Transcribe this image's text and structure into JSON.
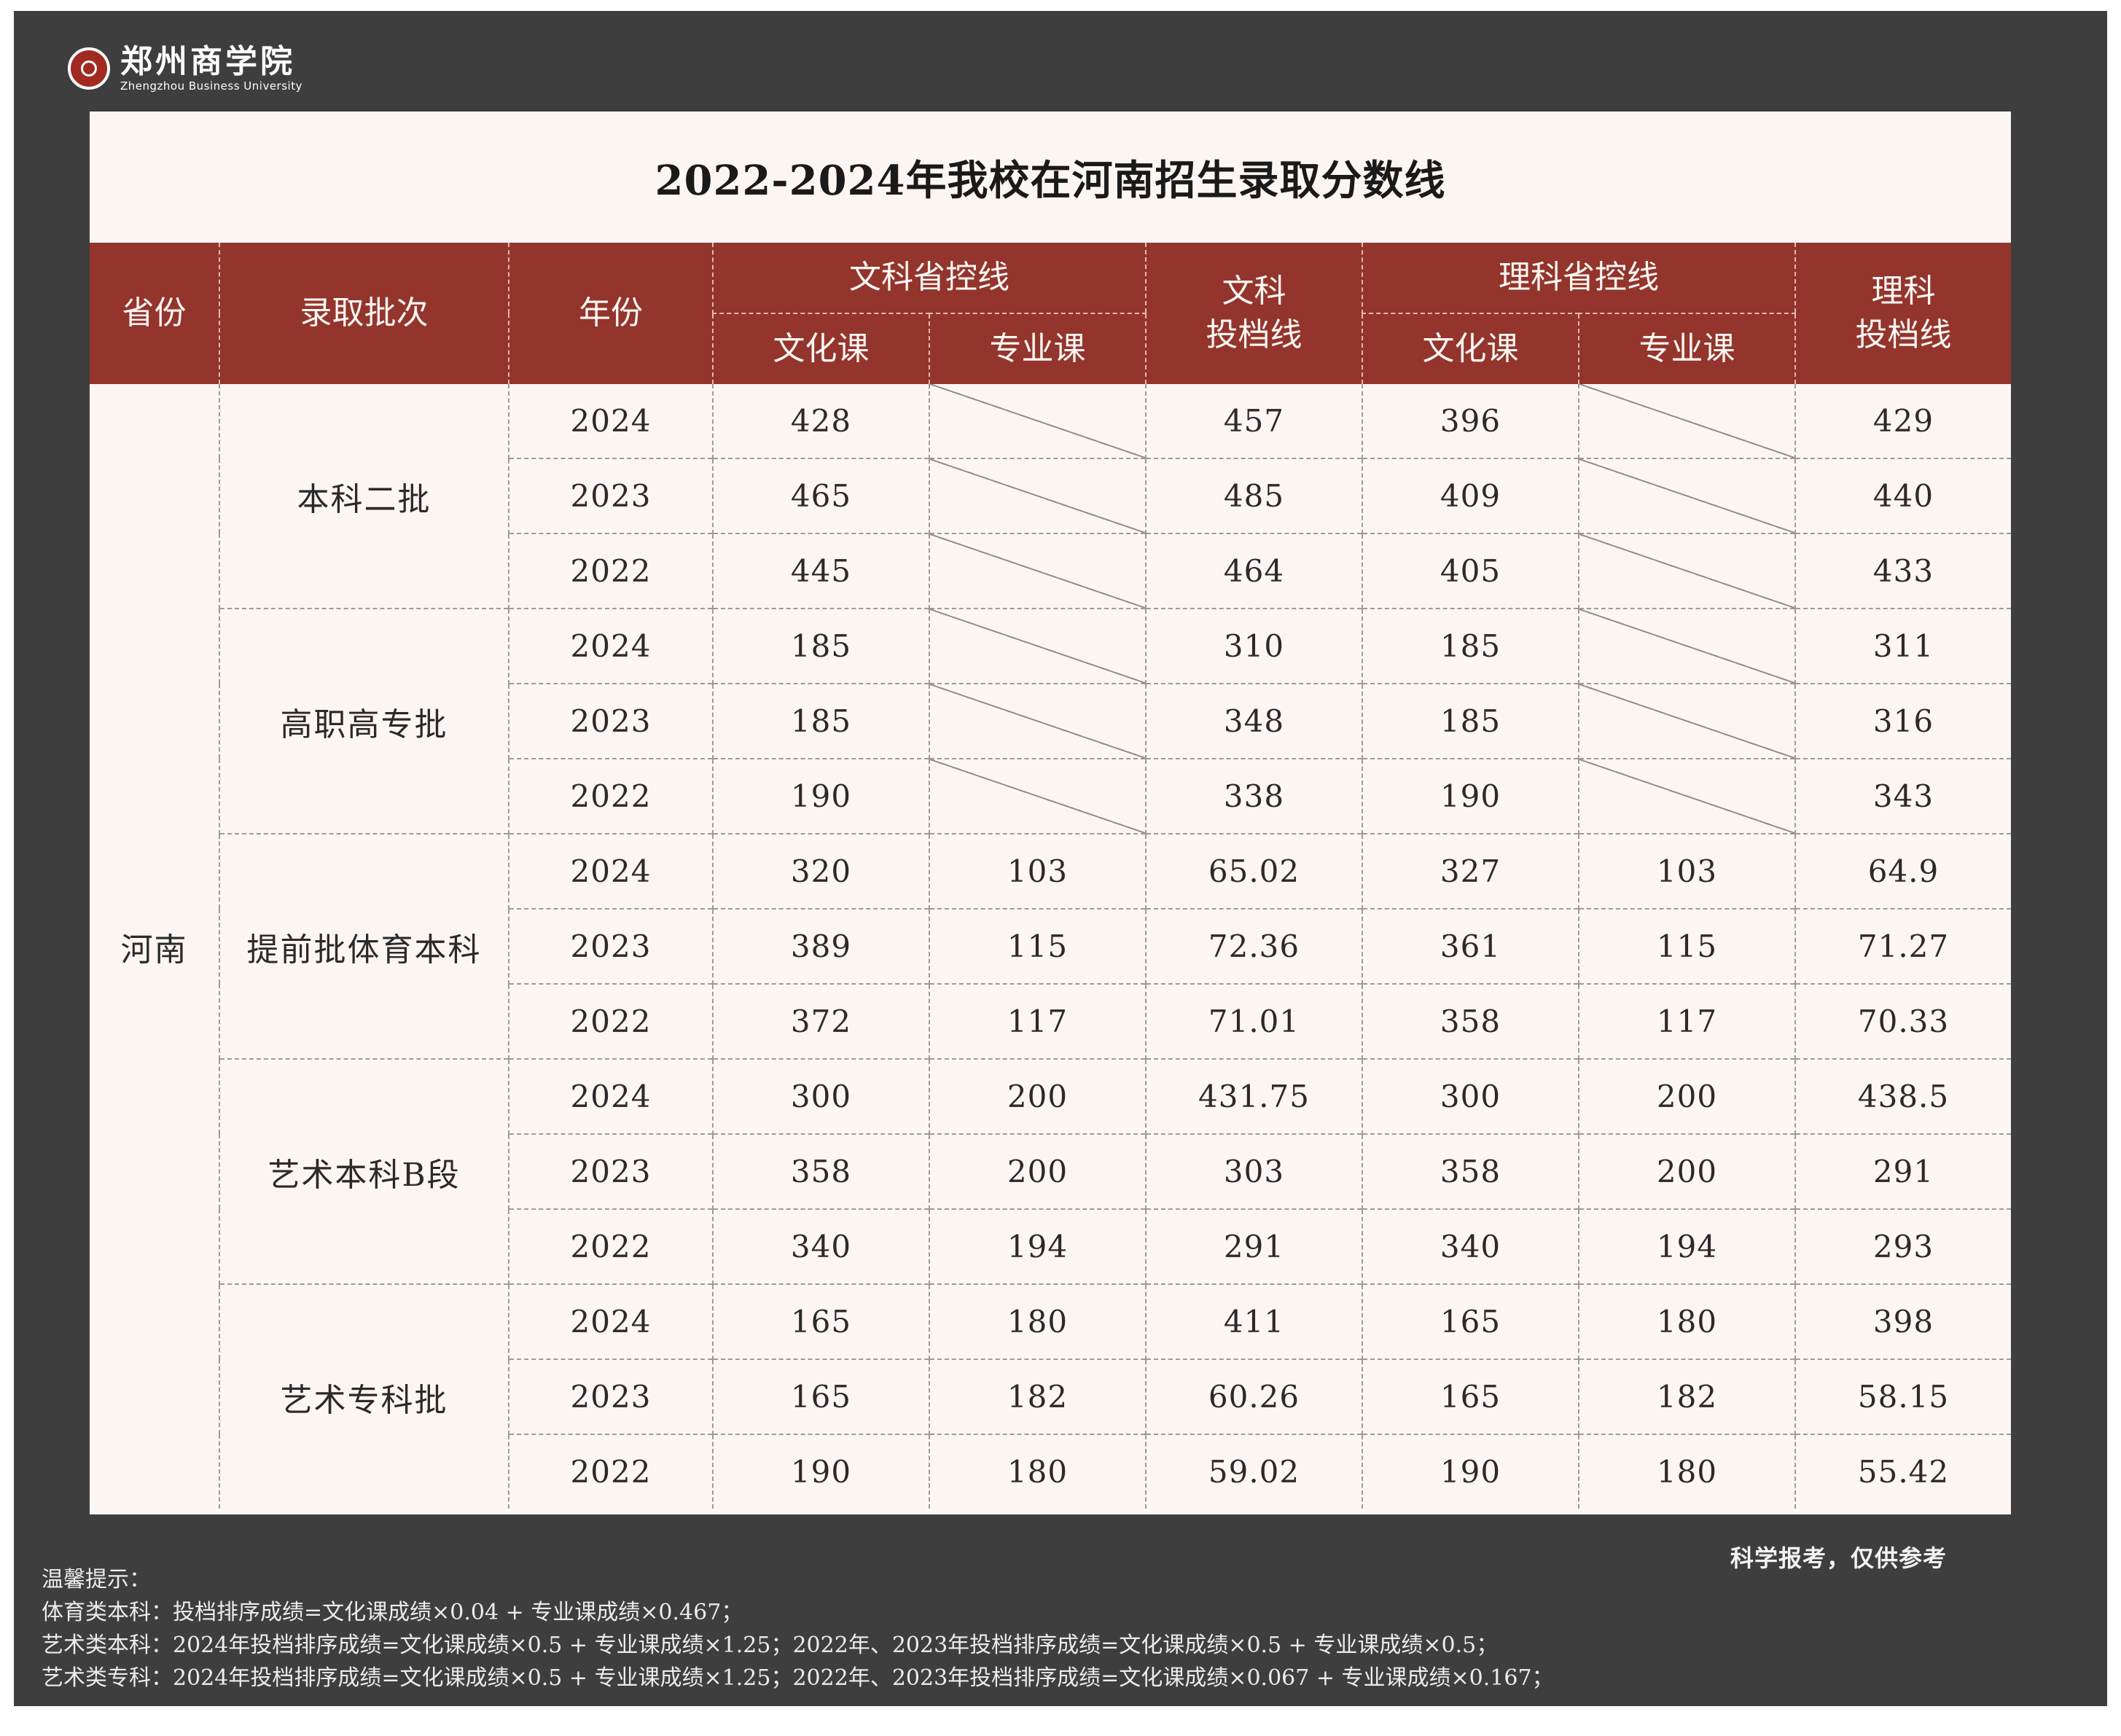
{
  "logo": {
    "name_cn": "郑州商学院",
    "name_en": "Zhengzhou Business University"
  },
  "title": "2022-2024年我校在河南招生录取分数线",
  "header": {
    "province": "省份",
    "batch": "录取批次",
    "year": "年份",
    "wen_control": "文科省控线",
    "wen_culture": "文化课",
    "wen_major": "专业课",
    "wen_tou": "文科\n投档线",
    "li_control": "理科省控线",
    "li_culture": "文化课",
    "li_major": "专业课",
    "li_tou": "理科\n投档线"
  },
  "province": "河南",
  "batches": [
    {
      "name": "本科二批",
      "rows": [
        {
          "year": "2024",
          "wen_culture": "428",
          "wen_major": "",
          "wen_tou": "457",
          "li_culture": "396",
          "li_major": "",
          "li_tou": "429"
        },
        {
          "year": "2023",
          "wen_culture": "465",
          "wen_major": "",
          "wen_tou": "485",
          "li_culture": "409",
          "li_major": "",
          "li_tou": "440"
        },
        {
          "year": "2022",
          "wen_culture": "445",
          "wen_major": "",
          "wen_tou": "464",
          "li_culture": "405",
          "li_major": "",
          "li_tou": "433"
        }
      ]
    },
    {
      "name": "高职高专批",
      "rows": [
        {
          "year": "2024",
          "wen_culture": "185",
          "wen_major": "",
          "wen_tou": "310",
          "li_culture": "185",
          "li_major": "",
          "li_tou": "311"
        },
        {
          "year": "2023",
          "wen_culture": "185",
          "wen_major": "",
          "wen_tou": "348",
          "li_culture": "185",
          "li_major": "",
          "li_tou": "316"
        },
        {
          "year": "2022",
          "wen_culture": "190",
          "wen_major": "",
          "wen_tou": "338",
          "li_culture": "190",
          "li_major": "",
          "li_tou": "343"
        }
      ]
    },
    {
      "name": "提前批体育本科",
      "rows": [
        {
          "year": "2024",
          "wen_culture": "320",
          "wen_major": "103",
          "wen_tou": "65.02",
          "li_culture": "327",
          "li_major": "103",
          "li_tou": "64.9"
        },
        {
          "year": "2023",
          "wen_culture": "389",
          "wen_major": "115",
          "wen_tou": "72.36",
          "li_culture": "361",
          "li_major": "115",
          "li_tou": "71.27"
        },
        {
          "year": "2022",
          "wen_culture": "372",
          "wen_major": "117",
          "wen_tou": "71.01",
          "li_culture": "358",
          "li_major": "117",
          "li_tou": "70.33"
        }
      ]
    },
    {
      "name": "艺术本科B段",
      "rows": [
        {
          "year": "2024",
          "wen_culture": "300",
          "wen_major": "200",
          "wen_tou": "431.75",
          "li_culture": "300",
          "li_major": "200",
          "li_tou": "438.5"
        },
        {
          "year": "2023",
          "wen_culture": "358",
          "wen_major": "200",
          "wen_tou": "303",
          "li_culture": "358",
          "li_major": "200",
          "li_tou": "291"
        },
        {
          "year": "2022",
          "wen_culture": "340",
          "wen_major": "194",
          "wen_tou": "291",
          "li_culture": "340",
          "li_major": "194",
          "li_tou": "293"
        }
      ]
    },
    {
      "name": "艺术专科批",
      "rows": [
        {
          "year": "2024",
          "wen_culture": "165",
          "wen_major": "180",
          "wen_tou": "411",
          "li_culture": "165",
          "li_major": "180",
          "li_tou": "398"
        },
        {
          "year": "2023",
          "wen_culture": "165",
          "wen_major": "182",
          "wen_tou": "60.26",
          "li_culture": "165",
          "li_major": "182",
          "li_tou": "58.15"
        },
        {
          "year": "2022",
          "wen_culture": "190",
          "wen_major": "180",
          "wen_tou": "59.02",
          "li_culture": "190",
          "li_major": "180",
          "li_tou": "55.42"
        }
      ]
    }
  ],
  "footer_right": "科学报考，仅供参考",
  "notes": [
    "温馨提示：",
    "体育类本科：投档排序成绩=文化课成绩×0.04 + 专业课成绩×0.467；",
    "艺术类本科：2024年投档排序成绩=文化课成绩×0.5 + 专业课成绩×1.25；2022年、2023年投档排序成绩=文化课成绩×0.5 + 专业课成绩×0.5；",
    "艺术类专科：2024年投档排序成绩=文化课成绩×0.5 + 专业课成绩×1.25；2022年、2023年投档排序成绩=文化课成绩×0.067 + 专业课成绩×0.167；"
  ]
}
